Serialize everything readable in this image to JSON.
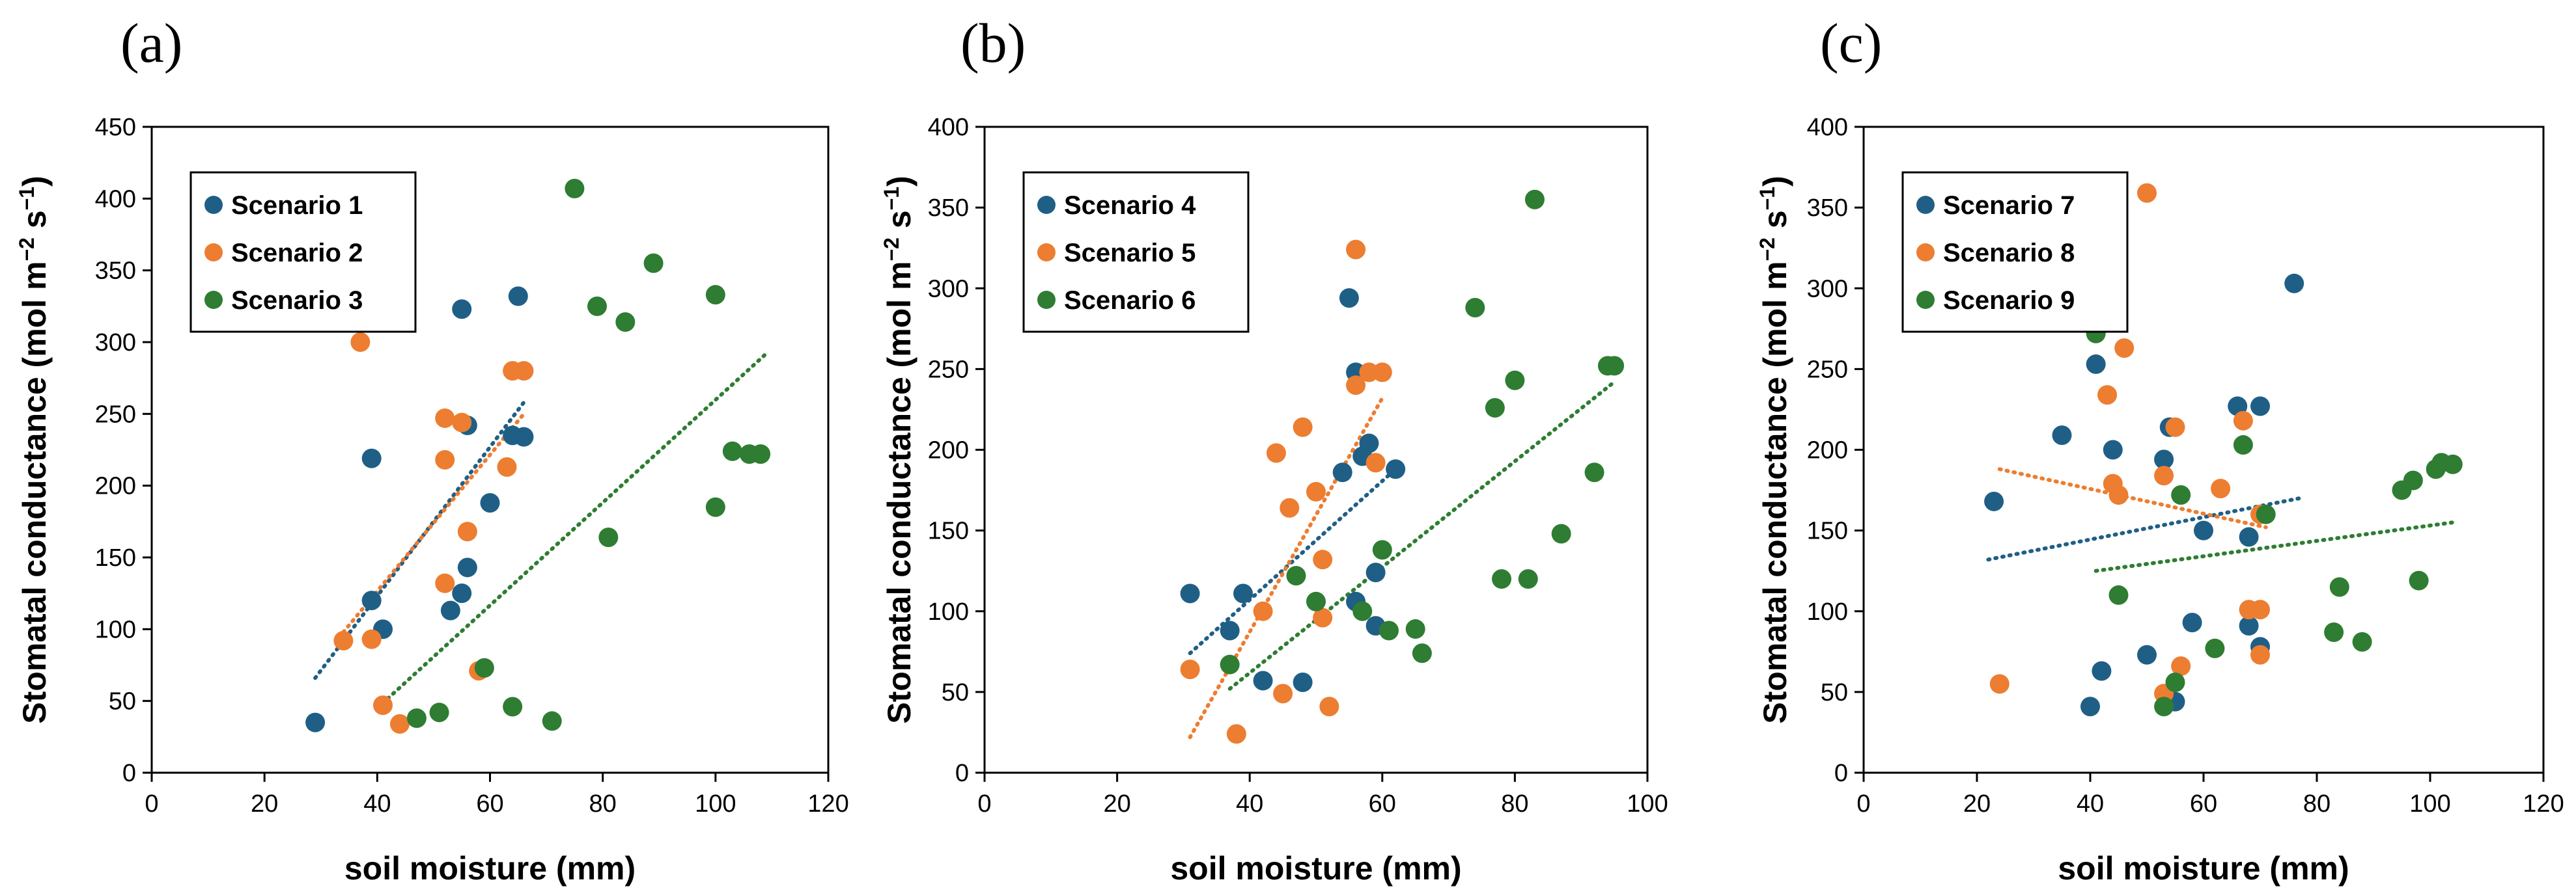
{
  "colors": {
    "blue": "#1f5f86",
    "orange": "#ed7d31",
    "green": "#2e7d32"
  },
  "chart_data": [
    {
      "type": "scatter",
      "panel_label": "(a)",
      "xlabel": "soil moisture (mm)",
      "ylabel": "Stomatal conductance (mol m",
      "ylabel_sup1": "−2",
      "ylabel_mid": " s",
      "ylabel_sup2": "−1",
      "ylabel_end": ")",
      "xlim": [
        0,
        120
      ],
      "ylim": [
        0,
        450
      ],
      "xticks": [
        "0",
        "20",
        "40",
        "60",
        "80",
        "100",
        "120"
      ],
      "yticks": [
        "0",
        "50",
        "100",
        "150",
        "200",
        "250",
        "300",
        "350",
        "400",
        "450"
      ],
      "legend_position": "top-left",
      "series": [
        {
          "name": "Scenario 1",
          "color": "#1f5f86",
          "points": [
            [
              29,
              35
            ],
            [
              39,
              219
            ],
            [
              39,
              120
            ],
            [
              41,
              100
            ],
            [
              55,
              323
            ],
            [
              56,
              242
            ],
            [
              55,
              125
            ],
            [
              56,
              143
            ],
            [
              53,
              113
            ],
            [
              60,
              188
            ],
            [
              64,
              235
            ],
            [
              65,
              332
            ],
            [
              66,
              234
            ]
          ],
          "trend": [
            [
              29,
              66
            ],
            [
              66,
              258
            ]
          ]
        },
        {
          "name": "Scenario 2",
          "color": "#ed7d31",
          "points": [
            [
              34,
              92
            ],
            [
              37,
              300
            ],
            [
              39,
              93
            ],
            [
              41,
              47
            ],
            [
              44,
              34
            ],
            [
              52,
              218
            ],
            [
              52,
              247
            ],
            [
              52,
              132
            ],
            [
              55,
              244
            ],
            [
              56,
              168
            ],
            [
              58,
              71
            ],
            [
              63,
              213
            ],
            [
              64,
              280
            ],
            [
              66,
              280
            ]
          ],
          "trend": [
            [
              34,
              98
            ],
            [
              66,
              250
            ]
          ]
        },
        {
          "name": "Scenario 3",
          "color": "#2e7d32",
          "points": [
            [
              47,
              38
            ],
            [
              51,
              42
            ],
            [
              59,
              73
            ],
            [
              64,
              46
            ],
            [
              71,
              36
            ],
            [
              75,
              407
            ],
            [
              79,
              325
            ],
            [
              81,
              164
            ],
            [
              84,
              314
            ],
            [
              89,
              355
            ],
            [
              100,
              333
            ],
            [
              100,
              185
            ],
            [
              103,
              224
            ],
            [
              106,
              222
            ],
            [
              108,
              222
            ]
          ],
          "trend": [
            [
              40,
              45
            ],
            [
              109,
              292
            ]
          ]
        }
      ]
    },
    {
      "type": "scatter",
      "panel_label": "(b)",
      "xlabel": "soil moisture (mm)",
      "ylabel": "Stomatal conductance (mol m",
      "ylabel_sup1": "−2",
      "ylabel_mid": " s",
      "ylabel_sup2": "−1",
      "ylabel_end": ")",
      "xlim": [
        0,
        100
      ],
      "ylim": [
        0,
        400
      ],
      "xticks": [
        "0",
        "20",
        "40",
        "60",
        "80",
        "100"
      ],
      "yticks": [
        "0",
        "50",
        "100",
        "150",
        "200",
        "250",
        "300",
        "350",
        "400"
      ],
      "legend_position": "top-left",
      "series": [
        {
          "name": "Scenario 4",
          "color": "#1f5f86",
          "points": [
            [
              31,
              111
            ],
            [
              37,
              88
            ],
            [
              39,
              111
            ],
            [
              42,
              57
            ],
            [
              48,
              56
            ],
            [
              54,
              186
            ],
            [
              55,
              294
            ],
            [
              56,
              248
            ],
            [
              56,
              106
            ],
            [
              57,
              196
            ],
            [
              58,
              204
            ],
            [
              59,
              124
            ],
            [
              59,
              91
            ],
            [
              62,
              188
            ]
          ],
          "trend": [
            [
              31,
              74
            ],
            [
              62,
              188
            ]
          ]
        },
        {
          "name": "Scenario 5",
          "color": "#ed7d31",
          "points": [
            [
              31,
              64
            ],
            [
              38,
              24
            ],
            [
              42,
              100
            ],
            [
              44,
              198
            ],
            [
              45,
              49
            ],
            [
              46,
              164
            ],
            [
              48,
              214
            ],
            [
              50,
              174
            ],
            [
              51,
              132
            ],
            [
              51,
              96
            ],
            [
              52,
              41
            ],
            [
              56,
              324
            ],
            [
              56,
              240
            ],
            [
              58,
              248
            ],
            [
              59,
              192
            ],
            [
              60,
              248
            ]
          ],
          "trend": [
            [
              31,
              22
            ],
            [
              60,
              232
            ]
          ]
        },
        {
          "name": "Scenario 6",
          "color": "#2e7d32",
          "points": [
            [
              37,
              67
            ],
            [
              47,
              122
            ],
            [
              50,
              106
            ],
            [
              57,
              100
            ],
            [
              60,
              138
            ],
            [
              61,
              88
            ],
            [
              65,
              89
            ],
            [
              66,
              74
            ],
            [
              74,
              288
            ],
            [
              77,
              226
            ],
            [
              78,
              120
            ],
            [
              80,
              243
            ],
            [
              82,
              120
            ],
            [
              83,
              355
            ],
            [
              87,
              148
            ],
            [
              92,
              186
            ],
            [
              94,
              252
            ],
            [
              95,
              252
            ]
          ],
          "trend": [
            [
              37,
              52
            ],
            [
              95,
              242
            ]
          ]
        }
      ]
    },
    {
      "type": "scatter",
      "panel_label": "(c)",
      "xlabel": "soil moisture (mm)",
      "ylabel": "Stomatal conductance (mol m",
      "ylabel_sup1": "−2",
      "ylabel_mid": " s",
      "ylabel_sup2": "−1",
      "ylabel_end": ")",
      "xlim": [
        0,
        120
      ],
      "ylim": [
        0,
        400
      ],
      "xticks": [
        "0",
        "20",
        "40",
        "60",
        "80",
        "100",
        "120"
      ],
      "yticks": [
        "0",
        "50",
        "100",
        "150",
        "200",
        "250",
        "300",
        "350",
        "400"
      ],
      "legend_position": "top-left",
      "series": [
        {
          "name": "Scenario 7",
          "color": "#1f5f86",
          "points": [
            [
              23,
              168
            ],
            [
              35,
              209
            ],
            [
              40,
              41
            ],
            [
              41,
              253
            ],
            [
              42,
              63
            ],
            [
              44,
              200
            ],
            [
              50,
              73
            ],
            [
              53,
              194
            ],
            [
              54,
              214
            ],
            [
              55,
              44
            ],
            [
              58,
              93
            ],
            [
              60,
              150
            ],
            [
              66,
              227
            ],
            [
              68,
              146
            ],
            [
              68,
              91
            ],
            [
              70,
              227
            ],
            [
              70,
              78
            ],
            [
              76,
              303
            ]
          ],
          "trend": [
            [
              22,
              132
            ],
            [
              77,
              170
            ]
          ]
        },
        {
          "name": "Scenario 8",
          "color": "#ed7d31",
          "points": [
            [
              24,
              55
            ],
            [
              43,
              234
            ],
            [
              44,
              179
            ],
            [
              45,
              172
            ],
            [
              46,
              263
            ],
            [
              50,
              359
            ],
            [
              53,
              184
            ],
            [
              53,
              49
            ],
            [
              55,
              214
            ],
            [
              56,
              66
            ],
            [
              63,
              176
            ],
            [
              67,
              218
            ],
            [
              68,
              101
            ],
            [
              70,
              101
            ],
            [
              70,
              73
            ],
            [
              70,
              160
            ]
          ],
          "trend": [
            [
              24,
              188
            ],
            [
              71,
              152
            ]
          ]
        },
        {
          "name": "Scenario 9",
          "color": "#2e7d32",
          "points": [
            [
              41,
              272
            ],
            [
              45,
              110
            ],
            [
              53,
              41
            ],
            [
              55,
              56
            ],
            [
              56,
              172
            ],
            [
              62,
              77
            ],
            [
              67,
              203
            ],
            [
              71,
              160
            ],
            [
              83,
              87
            ],
            [
              84,
              115
            ],
            [
              88,
              81
            ],
            [
              95,
              175
            ],
            [
              97,
              181
            ],
            [
              98,
              119
            ],
            [
              101,
              188
            ],
            [
              102,
              192
            ],
            [
              104,
              191
            ]
          ],
          "trend": [
            [
              41,
              125
            ],
            [
              104,
              155
            ]
          ]
        }
      ]
    }
  ]
}
